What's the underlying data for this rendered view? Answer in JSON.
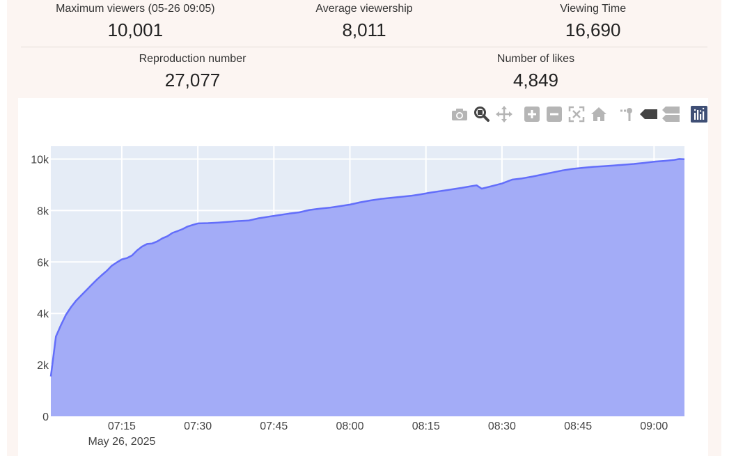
{
  "stats": {
    "max_viewers": {
      "label": "Maximum viewers (05-26 09:05)",
      "value": "10,001"
    },
    "avg_viewership": {
      "label": "Average viewership",
      "value": "8,011"
    },
    "viewing_time": {
      "label": "Viewing Time",
      "value": "16,690"
    },
    "reproduction": {
      "label": "Reproduction number",
      "value": "27,077"
    },
    "likes": {
      "label": "Number of likes",
      "value": "4,849"
    }
  },
  "modebar": {
    "icons": [
      "camera-icon",
      "zoom-icon",
      "pan-icon",
      "zoom-in-icon",
      "zoom-out-icon",
      "autoscale-icon",
      "home-icon",
      "spike-lines-icon",
      "hover-closest-icon",
      "hover-compare-icon",
      "plotly-logo-icon"
    ]
  },
  "colors": {
    "page_bg": "#fcf5f2",
    "plot_bg": "#e5ecf6",
    "area_fill": "#a3acf7",
    "line": "#636efa",
    "grid": "#ffffff",
    "modebar_icon": "#b5b5b5",
    "modebar_active": "#444444",
    "logo": "#3f4f75"
  },
  "chart_data": {
    "type": "area",
    "title": "",
    "xlabel": "",
    "ylabel": "",
    "x_range": [
      "07:01",
      "09:06"
    ],
    "x_ticks": [
      "07:15",
      "07:30",
      "07:45",
      "08:00",
      "08:15",
      "08:30",
      "08:45",
      "09:00"
    ],
    "x_tick_sublabel": "May 26, 2025",
    "ylim": [
      0,
      10500
    ],
    "y_ticks": [
      {
        "value": 0,
        "label": "0"
      },
      {
        "value": 2000,
        "label": "2k"
      },
      {
        "value": 4000,
        "label": "4k"
      },
      {
        "value": 6000,
        "label": "6k"
      },
      {
        "value": 8000,
        "label": "8k"
      },
      {
        "value": 10000,
        "label": "10k"
      }
    ],
    "grid": true,
    "series": [
      {
        "x": [
          "07:01",
          "07:02",
          "07:03",
          "07:04",
          "07:05",
          "07:06",
          "07:07",
          "07:08",
          "07:09",
          "07:10",
          "07:11",
          "07:12",
          "07:13",
          "07:14",
          "07:15",
          "07:16",
          "07:17",
          "07:18",
          "07:19",
          "07:20",
          "07:21",
          "07:22",
          "07:23",
          "07:24",
          "07:25",
          "07:26",
          "07:27",
          "07:28",
          "07:29",
          "07:30",
          "07:32",
          "07:34",
          "07:36",
          "07:38",
          "07:40",
          "07:42",
          "07:44",
          "07:46",
          "07:48",
          "07:50",
          "07:52",
          "07:54",
          "07:56",
          "07:58",
          "08:00",
          "08:02",
          "08:04",
          "08:06",
          "08:08",
          "08:10",
          "08:12",
          "08:14",
          "08:16",
          "08:18",
          "08:20",
          "08:22",
          "08:24",
          "08:25",
          "08:26",
          "08:28",
          "08:30",
          "08:32",
          "08:34",
          "08:36",
          "08:38",
          "08:40",
          "08:42",
          "08:44",
          "08:46",
          "08:48",
          "08:50",
          "08:52",
          "08:54",
          "08:56",
          "08:58",
          "09:00",
          "09:02",
          "09:04",
          "09:05",
          "09:06"
        ],
        "values": [
          1550,
          3100,
          3550,
          3950,
          4250,
          4500,
          4700,
          4900,
          5100,
          5300,
          5480,
          5650,
          5850,
          5980,
          6100,
          6150,
          6250,
          6450,
          6600,
          6700,
          6720,
          6800,
          6920,
          7000,
          7130,
          7200,
          7280,
          7380,
          7440,
          7500,
          7510,
          7530,
          7560,
          7590,
          7610,
          7700,
          7760,
          7820,
          7880,
          7930,
          8020,
          8070,
          8110,
          8170,
          8230,
          8320,
          8390,
          8450,
          8490,
          8530,
          8570,
          8630,
          8700,
          8760,
          8820,
          8880,
          8950,
          8980,
          8850,
          8950,
          9050,
          9200,
          9250,
          9320,
          9400,
          9480,
          9560,
          9620,
          9660,
          9700,
          9720,
          9750,
          9780,
          9810,
          9850,
          9900,
          9930,
          9970,
          10001,
          9990
        ]
      }
    ]
  }
}
